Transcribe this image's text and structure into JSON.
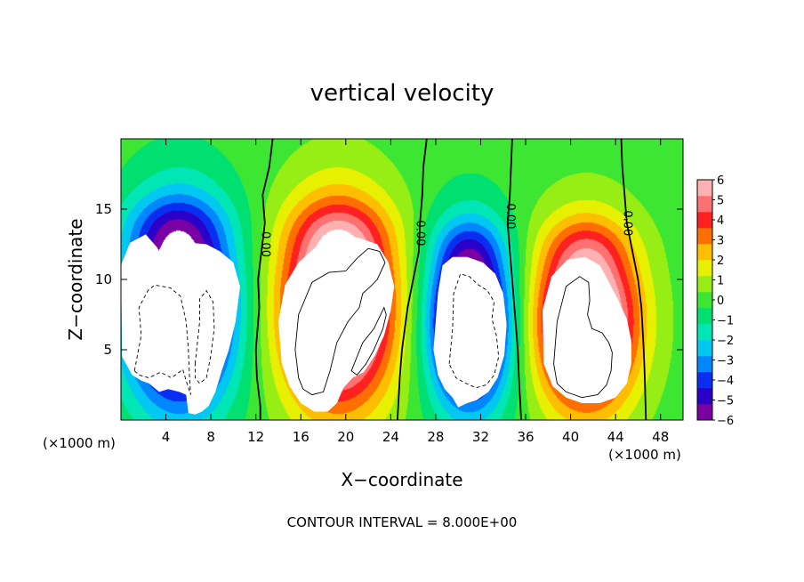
{
  "chart_data": {
    "type": "heatmap",
    "title": "vertical velocity",
    "xlabel": "X−coordinate",
    "ylabel": "Z−coordinate",
    "x_unit": "(×1000 m)",
    "z_unit": "(×1000 m)",
    "xlim": [
      0,
      50
    ],
    "ylim": [
      0,
      20
    ],
    "x_ticks": [
      4,
      8,
      12,
      16,
      20,
      24,
      28,
      32,
      36,
      40,
      44,
      48
    ],
    "x_tick_labels": [
      "4",
      "8",
      "12",
      "16",
      "20",
      "24",
      "28",
      "32",
      "36",
      "40",
      "44",
      "48"
    ],
    "y_ticks": [
      5,
      10,
      15
    ],
    "y_tick_labels": [
      "5",
      "10",
      "15"
    ],
    "colorbar": {
      "min": -6,
      "max": 6,
      "ticks": [
        6,
        5,
        4,
        3,
        2,
        1,
        0,
        -1,
        -2,
        -3,
        -4,
        -5,
        -6
      ],
      "tick_labels": [
        "6",
        "5",
        "4",
        "3",
        "2",
        "1",
        "0",
        "−1",
        "−2",
        "−3",
        "−4",
        "−5",
        "−6"
      ],
      "colors": [
        "#7b00a3",
        "#2a00c8",
        "#0a2ef0",
        "#0086ff",
        "#00c8f0",
        "#00e6b4",
        "#00e070",
        "#3ce632",
        "#96ee14",
        "#e6f000",
        "#ffbe00",
        "#ff6e00",
        "#ff2020",
        "#ff7070",
        "#ffb0b0"
      ]
    },
    "zero_contour_label": "0.00",
    "zero_contours": [
      {
        "label_at": [
          12.8,
          12.5
        ],
        "points": [
          [
            13.5,
            20
          ],
          [
            13.2,
            18
          ],
          [
            12.6,
            16
          ],
          [
            12.8,
            14
          ],
          [
            12.5,
            12
          ],
          [
            12.2,
            10
          ],
          [
            12.3,
            8
          ],
          [
            12.0,
            5
          ],
          [
            12.1,
            3
          ],
          [
            12.4,
            1
          ],
          [
            12.4,
            0
          ]
        ]
      },
      {
        "label_at": [
          26.6,
          13.3
        ],
        "points": [
          [
            27.2,
            20
          ],
          [
            26.9,
            18
          ],
          [
            26.8,
            16
          ],
          [
            26.6,
            14
          ],
          [
            26.5,
            12
          ],
          [
            26.0,
            10
          ],
          [
            25.5,
            8
          ],
          [
            25.0,
            5
          ],
          [
            24.8,
            3
          ],
          [
            24.6,
            0
          ]
        ]
      },
      {
        "label_at": [
          34.6,
          14.5
        ],
        "points": [
          [
            34.8,
            20
          ],
          [
            34.7,
            18
          ],
          [
            34.6,
            16
          ],
          [
            34.4,
            14
          ],
          [
            34.6,
            12
          ],
          [
            34.8,
            10
          ],
          [
            35.0,
            8
          ],
          [
            35.3,
            5
          ],
          [
            35.4,
            3
          ],
          [
            35.6,
            0
          ]
        ]
      },
      {
        "label_at": [
          45.0,
          14.0
        ],
        "points": [
          [
            44.5,
            20
          ],
          [
            44.6,
            18
          ],
          [
            44.8,
            16
          ],
          [
            45.0,
            14
          ],
          [
            45.5,
            12
          ],
          [
            46.0,
            10
          ],
          [
            46.3,
            8
          ],
          [
            46.5,
            5
          ],
          [
            46.6,
            3
          ],
          [
            46.7,
            0
          ]
        ]
      }
    ],
    "positive_contours_plus8": [
      [
        [
          15.8,
          3.0
        ],
        [
          15.5,
          5
        ],
        [
          15.8,
          7.5
        ],
        [
          17.0,
          9.8
        ],
        [
          18.5,
          10.5
        ],
        [
          20.0,
          10.6
        ],
        [
          21.0,
          11.5
        ],
        [
          22.0,
          12.2
        ],
        [
          23.0,
          12.0
        ],
        [
          23.5,
          11.2
        ],
        [
          22.8,
          10.0
        ],
        [
          22.2,
          9.5
        ],
        [
          21.5,
          9.0
        ],
        [
          21.2,
          8.0
        ],
        [
          20.2,
          7.0
        ],
        [
          19.2,
          5.5
        ],
        [
          18.6,
          3.5
        ],
        [
          18.0,
          2.0
        ],
        [
          17.0,
          1.8
        ],
        [
          16.2,
          2.2
        ],
        [
          15.8,
          3.0
        ]
      ],
      [
        [
          20.5,
          3.5
        ],
        [
          21.5,
          5.5
        ],
        [
          22.5,
          6.5
        ],
        [
          23.4,
          8.0
        ],
        [
          23.6,
          7.5
        ],
        [
          23.3,
          6.5
        ],
        [
          22.5,
          5.0
        ],
        [
          21.8,
          4.0
        ],
        [
          21.0,
          3.2
        ],
        [
          20.5,
          3.5
        ]
      ],
      [
        [
          38.5,
          4.0
        ],
        [
          38.8,
          7.0
        ],
        [
          39.6,
          9.5
        ],
        [
          40.8,
          10.2
        ],
        [
          41.6,
          9.8
        ],
        [
          41.7,
          8.5
        ],
        [
          41.5,
          7.5
        ],
        [
          41.9,
          6.5
        ],
        [
          42.8,
          6.2
        ],
        [
          43.4,
          5.5
        ],
        [
          43.7,
          4.8
        ],
        [
          43.6,
          3.5
        ],
        [
          43.2,
          2.5
        ],
        [
          42.4,
          1.8
        ],
        [
          41.0,
          1.6
        ],
        [
          39.6,
          2.0
        ],
        [
          38.8,
          2.6
        ],
        [
          38.5,
          4.0
        ]
      ]
    ],
    "negative_contours_minus8": [
      [
        [
          1.2,
          3.5
        ],
        [
          1.8,
          6.0
        ],
        [
          1.6,
          8.0
        ],
        [
          2.4,
          9.2
        ],
        [
          3.0,
          9.6
        ],
        [
          4.4,
          9.4
        ],
        [
          5.3,
          8.8
        ],
        [
          5.8,
          7.0
        ],
        [
          6.0,
          5.0
        ],
        [
          6.1,
          3.0
        ],
        [
          6.2,
          1.8
        ],
        [
          5.8,
          2.8
        ],
        [
          5.5,
          3.6
        ],
        [
          4.5,
          3.0
        ],
        [
          3.5,
          3.4
        ],
        [
          2.5,
          3.0
        ],
        [
          1.6,
          3.2
        ],
        [
          1.2,
          3.5
        ]
      ],
      [
        [
          6.6,
          4.0
        ],
        [
          7.0,
          7.0
        ],
        [
          7.0,
          8.6
        ],
        [
          7.6,
          9.2
        ],
        [
          8.2,
          8.4
        ],
        [
          8.3,
          6.5
        ],
        [
          8.0,
          4.6
        ],
        [
          7.6,
          3.0
        ],
        [
          7.0,
          2.6
        ],
        [
          6.6,
          3.0
        ],
        [
          6.6,
          4.0
        ]
      ],
      [
        [
          29.2,
          4.0
        ],
        [
          29.5,
          6.5
        ],
        [
          29.6,
          9.0
        ],
        [
          30.2,
          10.4
        ],
        [
          31.0,
          10.2
        ],
        [
          31.8,
          9.6
        ],
        [
          32.6,
          9.2
        ],
        [
          33.2,
          8.4
        ],
        [
          33.0,
          7.2
        ],
        [
          33.4,
          6.0
        ],
        [
          33.6,
          4.5
        ],
        [
          33.2,
          3.2
        ],
        [
          32.5,
          2.5
        ],
        [
          31.6,
          2.3
        ],
        [
          30.7,
          2.6
        ],
        [
          29.8,
          3.0
        ],
        [
          29.2,
          4.0
        ]
      ]
    ],
    "white_regions_gt6": [
      [
        [
          0.1,
          4.5
        ],
        [
          0.0,
          11.0
        ],
        [
          0.8,
          12.6
        ],
        [
          2.2,
          13.2
        ],
        [
          3.2,
          12.3
        ],
        [
          4.0,
          11.2
        ],
        [
          5.0,
          11.3
        ],
        [
          6.2,
          12.6
        ],
        [
          7.6,
          12.5
        ],
        [
          8.8,
          12.0
        ],
        [
          10.0,
          11.2
        ],
        [
          10.6,
          9.5
        ],
        [
          10.2,
          7.0
        ],
        [
          9.6,
          5.0
        ],
        [
          9.0,
          3.6
        ],
        [
          8.4,
          2.0
        ],
        [
          7.8,
          1.0
        ],
        [
          7.2,
          0.6
        ],
        [
          6.6,
          0.4
        ],
        [
          6.0,
          0.5
        ],
        [
          5.8,
          1.8
        ],
        [
          5.2,
          2.0
        ],
        [
          4.2,
          2.2
        ],
        [
          3.4,
          2.0
        ],
        [
          2.5,
          2.6
        ],
        [
          1.8,
          2.8
        ],
        [
          1.0,
          3.2
        ],
        [
          0.1,
          4.5
        ]
      ],
      [
        [
          14.3,
          4.0
        ],
        [
          14.0,
          7.0
        ],
        [
          14.6,
          9.6
        ],
        [
          15.8,
          11.2
        ],
        [
          17.3,
          12.3
        ],
        [
          19.0,
          12.9
        ],
        [
          21.0,
          13.0
        ],
        [
          22.8,
          12.5
        ],
        [
          23.8,
          11.2
        ],
        [
          24.3,
          9.5
        ],
        [
          24.0,
          7.8
        ],
        [
          23.4,
          6.0
        ],
        [
          22.6,
          4.6
        ],
        [
          21.6,
          3.4
        ],
        [
          20.6,
          3.0
        ],
        [
          19.8,
          2.3
        ],
        [
          19.2,
          1.2
        ],
        [
          18.4,
          0.6
        ],
        [
          17.2,
          0.6
        ],
        [
          16.0,
          1.2
        ],
        [
          15.0,
          2.4
        ],
        [
          14.3,
          4.0
        ]
      ],
      [
        [
          27.8,
          5.0
        ],
        [
          28.2,
          9.0
        ],
        [
          28.6,
          11.0
        ],
        [
          29.5,
          11.6
        ],
        [
          30.8,
          11.6
        ],
        [
          32.2,
          11.2
        ],
        [
          33.3,
          10.4
        ],
        [
          34.0,
          9.0
        ],
        [
          34.3,
          6.8
        ],
        [
          34.1,
          4.6
        ],
        [
          33.5,
          3.0
        ],
        [
          32.7,
          2.0
        ],
        [
          31.6,
          1.4
        ],
        [
          30.8,
          1.2
        ],
        [
          30.0,
          0.9
        ],
        [
          29.5,
          1.6
        ],
        [
          28.8,
          2.2
        ],
        [
          28.2,
          3.2
        ],
        [
          27.8,
          5.0
        ]
      ],
      [
        [
          37.6,
          4.0
        ],
        [
          37.5,
          7.8
        ],
        [
          38.3,
          10.2
        ],
        [
          39.7,
          11.4
        ],
        [
          41.3,
          11.6
        ],
        [
          42.6,
          11.0
        ],
        [
          43.4,
          9.8
        ],
        [
          44.2,
          8.6
        ],
        [
          45.0,
          7.2
        ],
        [
          45.4,
          5.6
        ],
        [
          45.4,
          4.0
        ],
        [
          45.0,
          2.6
        ],
        [
          44.0,
          1.6
        ],
        [
          42.6,
          1.2
        ],
        [
          41.0,
          1.2
        ],
        [
          39.6,
          1.6
        ],
        [
          38.4,
          2.4
        ],
        [
          37.6,
          4.0
        ]
      ]
    ],
    "contour_interval_text": "CONTOUR INTERVAL = 8.000E+00"
  }
}
